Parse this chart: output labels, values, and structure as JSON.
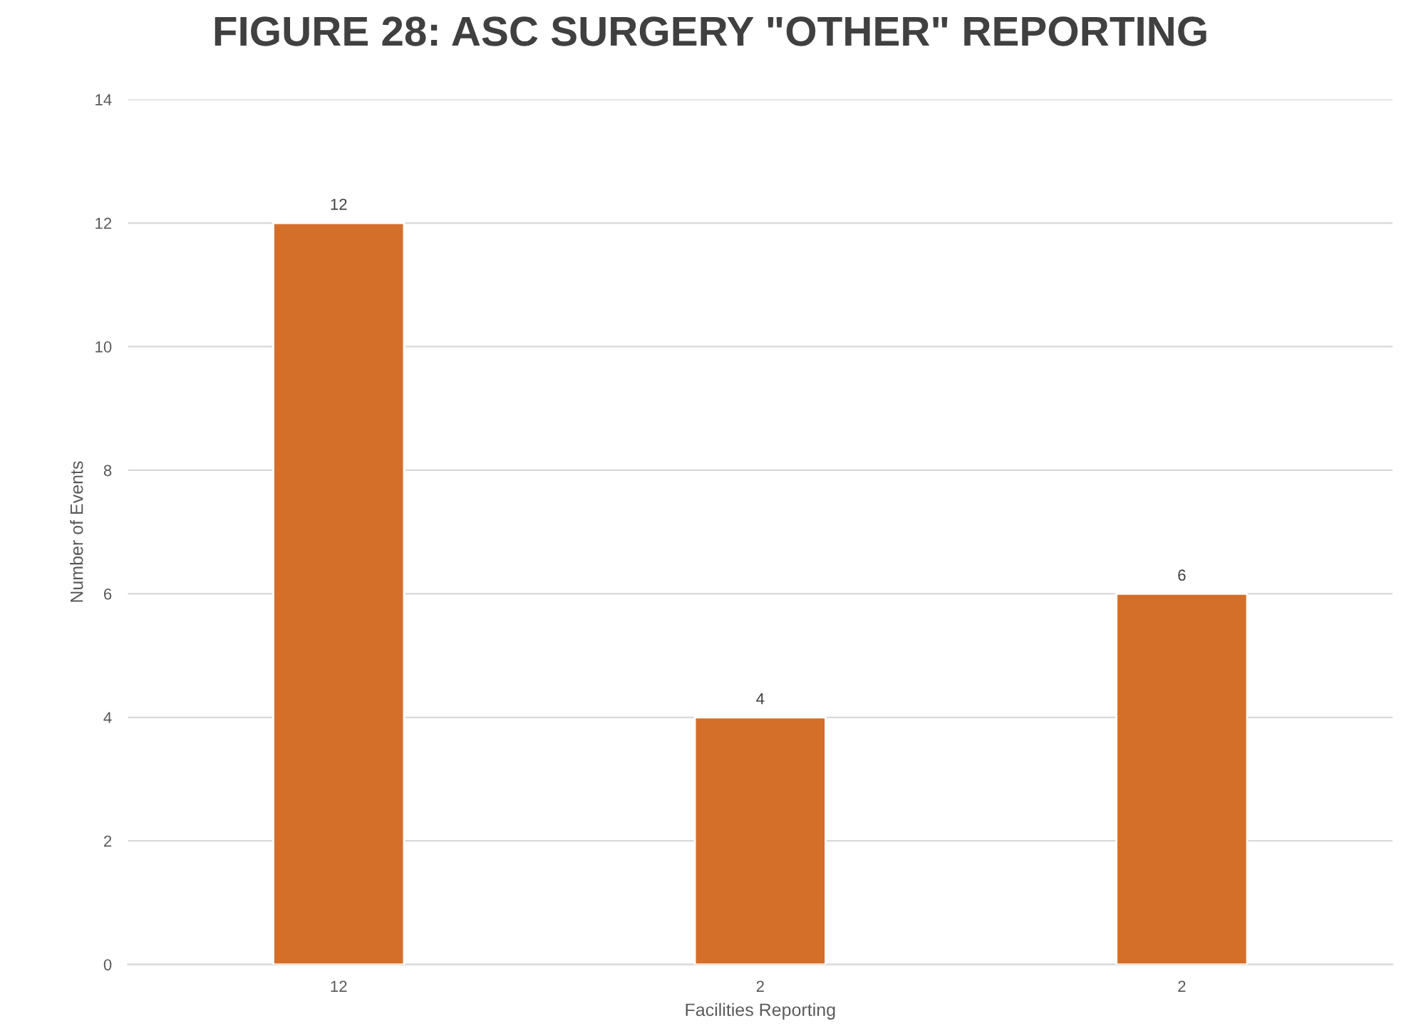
{
  "chart_data": {
    "type": "bar",
    "title": "FIGURE 28: ASC SURGERY \"OTHER\" REPORTING",
    "xlabel": "Facilities Reporting",
    "ylabel": "Number of Events",
    "categories": [
      "12",
      "2",
      "2"
    ],
    "values": [
      12,
      4,
      6
    ],
    "color": "#d46f2a",
    "ylim": [
      0,
      14
    ],
    "yticks": [
      0,
      2,
      4,
      6,
      8,
      10,
      12,
      14
    ],
    "grid": "y",
    "data_labels": true,
    "legend": false
  }
}
